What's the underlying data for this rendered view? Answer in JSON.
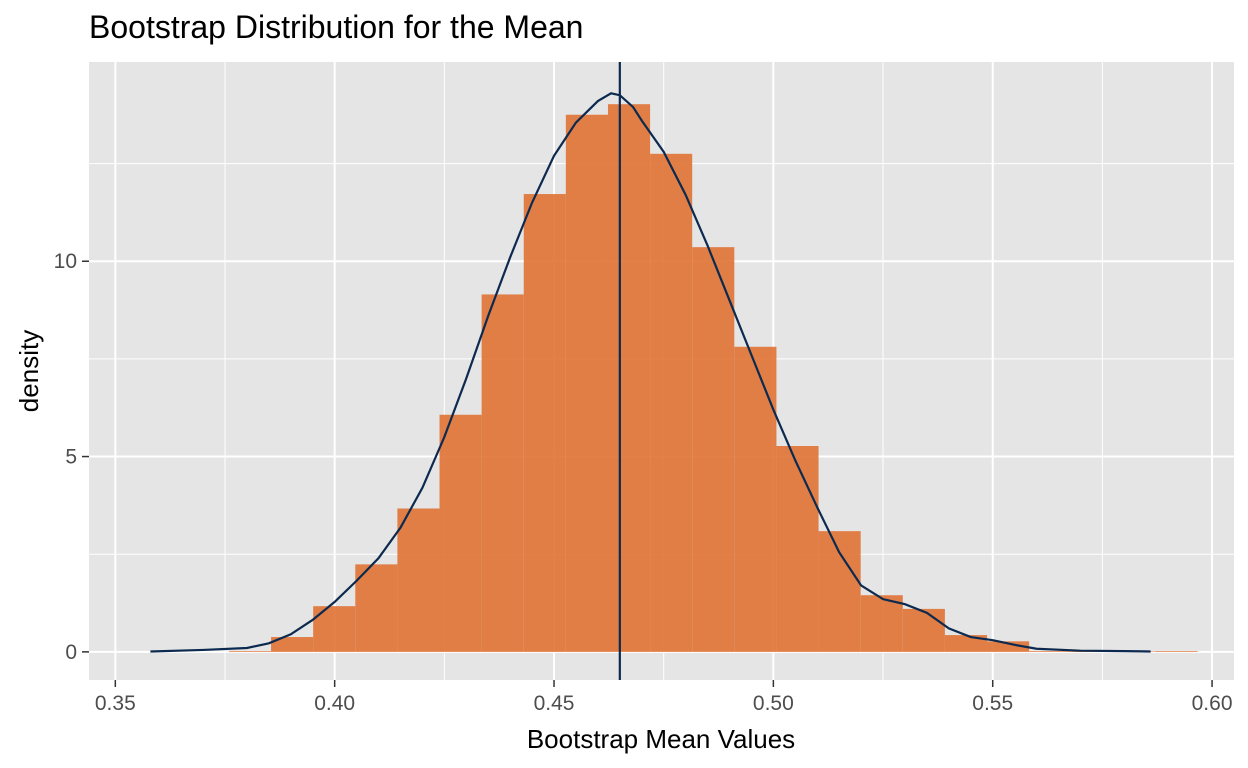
{
  "chart_data": {
    "type": "bar",
    "title": "Bootstrap Distribution for the Mean",
    "xlabel": "Bootstrap Mean Values",
    "ylabel": "density",
    "xlim": [
      0.344,
      0.605
    ],
    "ylim": [
      -0.72,
      15.1
    ],
    "xticks": [
      0.35,
      0.4,
      0.45,
      0.5,
      0.55,
      0.6
    ],
    "xtick_labels": [
      "0.35",
      "0.40",
      "0.45",
      "0.50",
      "0.55",
      "0.60"
    ],
    "yticks": [
      0,
      5,
      10
    ],
    "ytick_labels": [
      "0",
      "5",
      "10"
    ],
    "grid": true,
    "legend": "none",
    "colors": {
      "panel": "#e5e5e5",
      "grid": "#ffffff",
      "bar_fill": "#e0763a",
      "density_line": "#0c2a4f",
      "mean_line": "#0c2a4f"
    },
    "histogram": {
      "bin_width": 0.0096,
      "bins": [
        {
          "x0": 0.3759,
          "x1": 0.3855,
          "density": 0.02
        },
        {
          "x0": 0.3855,
          "x1": 0.3951,
          "density": 0.38
        },
        {
          "x0": 0.3951,
          "x1": 0.4047,
          "density": 1.17
        },
        {
          "x0": 0.4047,
          "x1": 0.4143,
          "density": 2.24
        },
        {
          "x0": 0.4143,
          "x1": 0.4239,
          "density": 3.67
        },
        {
          "x0": 0.4239,
          "x1": 0.4335,
          "density": 6.07
        },
        {
          "x0": 0.4335,
          "x1": 0.4431,
          "density": 9.15
        },
        {
          "x0": 0.4431,
          "x1": 0.4527,
          "density": 11.72
        },
        {
          "x0": 0.4527,
          "x1": 0.4623,
          "density": 13.75
        },
        {
          "x0": 0.4623,
          "x1": 0.4719,
          "density": 14.02
        },
        {
          "x0": 0.4719,
          "x1": 0.4815,
          "density": 12.75
        },
        {
          "x0": 0.4815,
          "x1": 0.4911,
          "density": 10.36
        },
        {
          "x0": 0.4911,
          "x1": 0.5007,
          "density": 7.81
        },
        {
          "x0": 0.5007,
          "x1": 0.5103,
          "density": 5.27
        },
        {
          "x0": 0.5103,
          "x1": 0.5199,
          "density": 3.09
        },
        {
          "x0": 0.5199,
          "x1": 0.5295,
          "density": 1.45
        },
        {
          "x0": 0.5295,
          "x1": 0.5391,
          "density": 1.1
        },
        {
          "x0": 0.5391,
          "x1": 0.5487,
          "density": 0.43
        },
        {
          "x0": 0.5487,
          "x1": 0.5583,
          "density": 0.27
        },
        {
          "x0": 0.5583,
          "x1": 0.5679,
          "density": 0.02
        },
        {
          "x0": 0.5679,
          "x1": 0.5775,
          "density": 0.01
        },
        {
          "x0": 0.5775,
          "x1": 0.5871,
          "density": 0.01
        },
        {
          "x0": 0.5871,
          "x1": 0.5967,
          "density": 0.02
        }
      ]
    },
    "density_curve": {
      "x": [
        0.358,
        0.37,
        0.38,
        0.385,
        0.39,
        0.395,
        0.4,
        0.405,
        0.41,
        0.415,
        0.42,
        0.425,
        0.43,
        0.435,
        0.44,
        0.445,
        0.45,
        0.455,
        0.46,
        0.463,
        0.465,
        0.468,
        0.47,
        0.475,
        0.48,
        0.485,
        0.49,
        0.495,
        0.5,
        0.505,
        0.51,
        0.515,
        0.52,
        0.525,
        0.53,
        0.535,
        0.54,
        0.545,
        0.55,
        0.555,
        0.56,
        0.57,
        0.58,
        0.586
      ],
      "y": [
        0.01,
        0.05,
        0.1,
        0.22,
        0.45,
        0.82,
        1.28,
        1.82,
        2.4,
        3.18,
        4.2,
        5.5,
        7.0,
        8.6,
        10.1,
        11.5,
        12.7,
        13.55,
        14.1,
        14.3,
        14.25,
        13.95,
        13.6,
        12.8,
        11.7,
        10.4,
        9.0,
        7.6,
        6.2,
        4.9,
        3.7,
        2.55,
        1.7,
        1.35,
        1.22,
        1.0,
        0.6,
        0.38,
        0.3,
        0.18,
        0.08,
        0.03,
        0.02,
        0.01
      ]
    },
    "mean_line_x": 0.465
  }
}
